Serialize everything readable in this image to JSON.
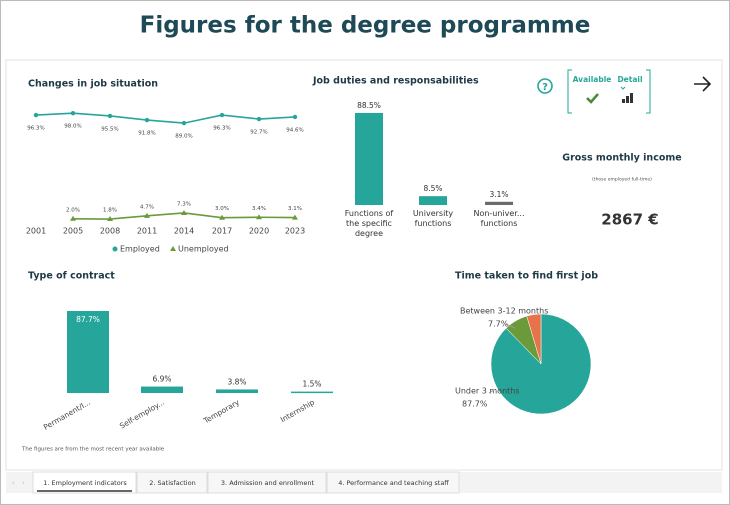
{
  "title": "Figures for the degree programme",
  "chart_data": [
    {
      "type": "line",
      "title": "Changes in job situation",
      "categories": [
        "2001",
        "2005",
        "2008",
        "2011",
        "2014",
        "2017",
        "2020",
        "2023"
      ],
      "ylim": [
        0,
        100
      ],
      "series": [
        {
          "name": "Employed",
          "color": "#26a69a",
          "marker": "circle",
          "values": [
            96.3,
            98.0,
            95.5,
            91.8,
            89.0,
            96.3,
            92.7,
            94.6
          ],
          "value_labels": [
            "96.3%",
            "98.0%",
            "95.5%",
            "91.8%",
            "89.0%",
            "96.3%",
            "92.7%",
            "94.6%"
          ]
        },
        {
          "name": "Unemployed",
          "color": "#6a9a3a",
          "marker": "triangle",
          "values": [
            null,
            2.0,
            1.8,
            4.7,
            7.3,
            3.0,
            3.4,
            3.1
          ],
          "value_labels": [
            null,
            "2.0%",
            "1.8%",
            "4.7%",
            "7.3%",
            "3.0%",
            "3.4%",
            "3.1%"
          ]
        }
      ]
    },
    {
      "type": "bar",
      "title": "Job duties and responsabilities",
      "categories": [
        "Functions of the specific degree",
        "University functions",
        "Non-univer... functions"
      ],
      "values": [
        88.5,
        8.5,
        3.1
      ],
      "value_labels": [
        "88.5%",
        "8.5%",
        "3.1%"
      ],
      "colors": [
        "#26a69a",
        "#26a69a",
        "#6b6b6b"
      ],
      "ylim": [
        0,
        100
      ]
    },
    {
      "type": "bar",
      "title": "Type of contract",
      "categories": [
        "Permanent/I...",
        "Self-employ...",
        "Temporary",
        "Internship"
      ],
      "values": [
        87.7,
        6.9,
        3.8,
        1.5
      ],
      "value_labels": [
        "87.7%",
        "6.9%",
        "3.8%",
        "1.5%"
      ],
      "colors": [
        "#26a69a",
        "#26a69a",
        "#26a69a",
        "#26a69a"
      ],
      "ylim": [
        0,
        100
      ]
    },
    {
      "type": "pie",
      "title": "Time taken to find first job",
      "categories": [
        "Under 3 months",
        "Between 3-12 months",
        null
      ],
      "values": [
        87.7,
        7.7,
        4.6
      ],
      "value_labels": [
        "87.7%",
        "7.7%",
        null
      ],
      "colors": [
        "#26a69a",
        "#6a9a3a",
        "#e8734a"
      ]
    }
  ],
  "income": {
    "title": "Gross monthly income",
    "subtitle": "(those employed full-time)",
    "value": "2867 €"
  },
  "controls": {
    "available": "Available",
    "detail": "Detail"
  },
  "footnote": "The figures are from the most recent year available",
  "tabs": [
    "1. Employment indicators",
    "2. Satisfaction",
    "3. Admission and enrollment",
    "4. Performance and teaching staff"
  ]
}
